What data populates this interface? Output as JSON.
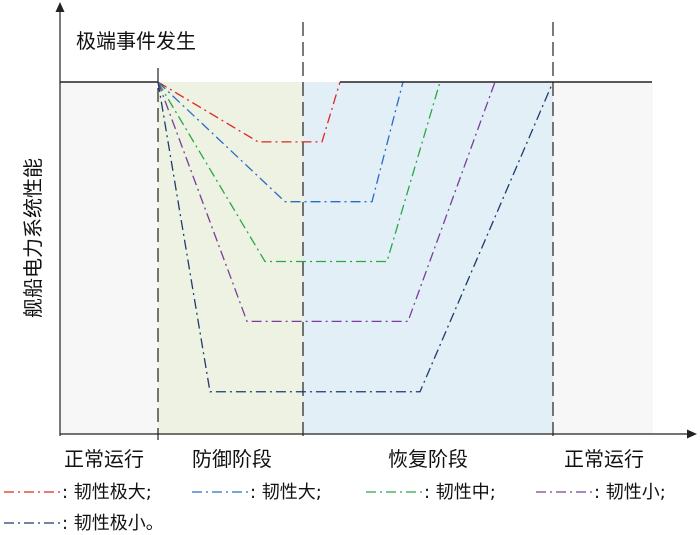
{
  "diagram": {
    "event_label": "极端事件发生",
    "y_axis_label": "舰船电力系统性能",
    "phases": [
      "正常运行",
      "防御阶段",
      "恢复阶段",
      "正常运行"
    ],
    "phase_colors": [
      "#f7f7f7",
      "#edf2e3",
      "#e2eff7",
      "#f7f7f7"
    ],
    "curves": [
      {
        "name": "韧性极大",
        "color": "#e0271f",
        "min_level": 0.83
      },
      {
        "name": "韧性大",
        "color": "#2b6cc4",
        "min_level": 0.66
      },
      {
        "name": "韧性中",
        "color": "#27a845",
        "min_level": 0.49
      },
      {
        "name": "韧性小",
        "color": "#7a3d9c",
        "min_level": 0.32
      },
      {
        "name": "韧性极小",
        "color": "#1f3a6e",
        "min_level": 0.12
      }
    ],
    "legend_row1": [
      ": 韧性极大;",
      ": 韧性大;",
      ": 韧性中;",
      ": 韧性小;"
    ],
    "legend_row2": [
      ": 韧性极小。"
    ]
  }
}
